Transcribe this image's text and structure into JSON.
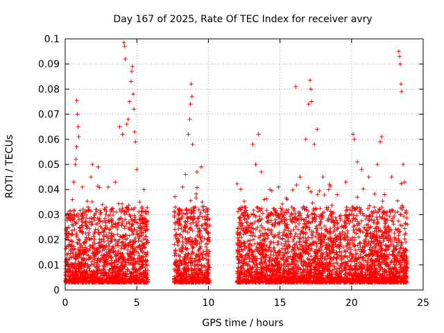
{
  "chart_data": {
    "type": "scatter",
    "title": "Day 167 of 2025, Rate Of TEC Index for receiver avry",
    "xlabel": "GPS time / hours",
    "ylabel": "ROTI / TECUs",
    "xlim": [
      0,
      25
    ],
    "ylim": [
      0,
      0.1
    ],
    "xticks": [
      0,
      5,
      10,
      15,
      20,
      25
    ],
    "xtick_labels": [
      "0",
      "5",
      "10",
      "15",
      "20",
      "25"
    ],
    "yticks": [
      0,
      0.01,
      0.02,
      0.03,
      0.04,
      0.05,
      0.06,
      0.07,
      0.08,
      0.09,
      0.1
    ],
    "ytick_labels": [
      "0",
      "0.01",
      "0.02",
      "0.03",
      "0.04",
      "0.05",
      "0.06",
      "0.07",
      "0.08",
      "0.09",
      "0.1"
    ],
    "grid": true,
    "marker": "+",
    "color": "#ff0000",
    "segments": [
      {
        "x_start": 0.0,
        "x_end": 5.8
      },
      {
        "x_start": 7.6,
        "x_end": 10.1
      },
      {
        "x_start": 12.0,
        "x_end": 23.9
      }
    ],
    "series": [
      {
        "name": "ROTI",
        "points": [
          [
            0.2,
            0.021
          ],
          [
            0.4,
            0.029
          ],
          [
            0.5,
            0.036
          ],
          [
            0.6,
            0.043
          ],
          [
            0.7,
            0.05
          ],
          [
            0.75,
            0.052
          ],
          [
            0.8,
            0.057
          ],
          [
            0.8,
            0.0755
          ],
          [
            0.85,
            0.07
          ],
          [
            0.9,
            0.065
          ],
          [
            0.95,
            0.061
          ],
          [
            1.2,
            0.041
          ],
          [
            1.6,
            0.033
          ],
          [
            1.8,
            0.045
          ],
          [
            1.9,
            0.05
          ],
          [
            2.3,
            0.049
          ],
          [
            2.6,
            0.034
          ],
          [
            3.0,
            0.041
          ],
          [
            3.5,
            0.043
          ],
          [
            3.8,
            0.065
          ],
          [
            4.0,
            0.062
          ],
          [
            4.1,
            0.0985
          ],
          [
            4.15,
            0.097
          ],
          [
            4.2,
            0.092
          ],
          [
            4.3,
            0.066
          ],
          [
            4.4,
            0.068
          ],
          [
            4.5,
            0.075
          ],
          [
            4.6,
            0.083
          ],
          [
            4.65,
            0.087
          ],
          [
            4.7,
            0.089
          ],
          [
            4.75,
            0.078
          ],
          [
            4.8,
            0.072
          ],
          [
            4.85,
            0.063
          ],
          [
            4.9,
            0.059
          ],
          [
            5.0,
            0.048
          ],
          [
            5.2,
            0.035
          ],
          [
            5.5,
            0.04
          ],
          [
            8.2,
            0.041
          ],
          [
            8.4,
            0.046
          ],
          [
            8.6,
            0.062
          ],
          [
            8.7,
            0.068
          ],
          [
            8.75,
            0.074
          ],
          [
            8.8,
            0.082
          ],
          [
            8.85,
            0.077
          ],
          [
            8.9,
            0.058
          ],
          [
            9.2,
            0.047
          ],
          [
            9.5,
            0.049
          ],
          [
            9.8,
            0.024
          ],
          [
            12.4,
            0.033
          ],
          [
            12.8,
            0.029
          ],
          [
            13.1,
            0.058
          ],
          [
            13.3,
            0.05
          ],
          [
            13.5,
            0.062
          ],
          [
            13.7,
            0.047
          ],
          [
            13.9,
            0.036
          ],
          [
            14.3,
            0.04
          ],
          [
            14.9,
            0.041
          ],
          [
            15.5,
            0.036
          ],
          [
            16.1,
            0.081
          ],
          [
            16.4,
            0.045
          ],
          [
            16.8,
            0.06
          ],
          [
            17.0,
            0.074
          ],
          [
            17.1,
            0.0835
          ],
          [
            17.15,
            0.08
          ],
          [
            17.2,
            0.075
          ],
          [
            17.4,
            0.058
          ],
          [
            17.6,
            0.064
          ],
          [
            18.0,
            0.045
          ],
          [
            18.4,
            0.04
          ],
          [
            19.0,
            0.038
          ],
          [
            19.6,
            0.043
          ],
          [
            20.1,
            0.062
          ],
          [
            20.2,
            0.06
          ],
          [
            20.4,
            0.051
          ],
          [
            20.7,
            0.048
          ],
          [
            21.2,
            0.045
          ],
          [
            21.8,
            0.05
          ],
          [
            22.0,
            0.059
          ],
          [
            22.1,
            0.061
          ],
          [
            22.3,
            0.038
          ],
          [
            22.8,
            0.045
          ],
          [
            23.3,
            0.095
          ],
          [
            23.35,
            0.093
          ],
          [
            23.4,
            0.09
          ],
          [
            23.45,
            0.082
          ],
          [
            23.5,
            0.079
          ],
          [
            23.6,
            0.05
          ],
          [
            23.7,
            0.043
          ]
        ]
      }
    ]
  }
}
